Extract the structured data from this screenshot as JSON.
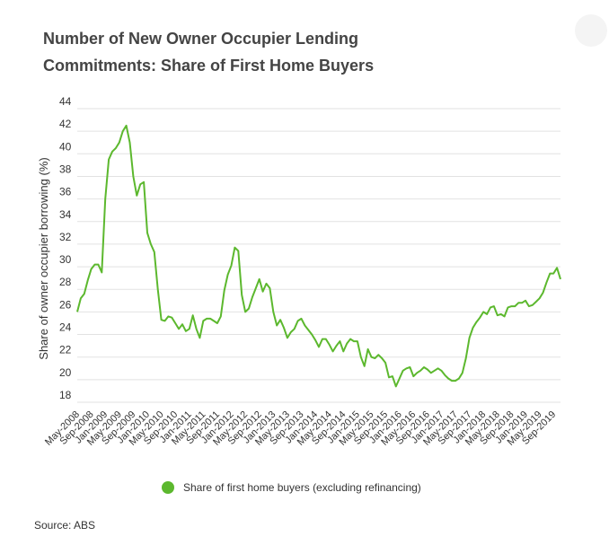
{
  "header": {
    "title_line1": "Number of New Owner Occupier Lending",
    "title_line2": "Commitments: Share of First Home Buyers"
  },
  "footer": {
    "source": "Source: ABS"
  },
  "colors": {
    "series": "#5cb82e",
    "grid": "#e2e2e2",
    "text": "#333333"
  },
  "chart_data": {
    "type": "line",
    "title": "Number of New Owner Occupier Lending Commitments: Share of First Home Buyers",
    "ylabel": "Share of owner occupier borrowing (%)",
    "xlabel": "",
    "ylim": [
      18,
      44
    ],
    "yticks": [
      18,
      20,
      22,
      24,
      26,
      28,
      30,
      32,
      34,
      36,
      38,
      40,
      42,
      44
    ],
    "grid": true,
    "legend_position": "bottom",
    "x_tick_labels": [
      "May-2008",
      "Sep-2008",
      "Jan-2009",
      "May-2009",
      "Sep-2009",
      "Jan-2010",
      "May-2010",
      "Sep-2010",
      "Jan-2011",
      "May-2011",
      "Sep-2011",
      "Jan-2012",
      "May-2012",
      "Sep-2012",
      "Jan-2013",
      "May-2013",
      "Sep-2013",
      "Jan-2014",
      "May-2014",
      "Sep-2014",
      "Jan-2015",
      "May-2015",
      "Sep-2015",
      "Jan-2016",
      "May-2016",
      "Sep-2016",
      "Jan-2017",
      "May-2017",
      "Sep-2017",
      "Jan-2018",
      "May-2018",
      "Sep-2018",
      "Jan-2019",
      "May-2019",
      "Sep-2019"
    ],
    "series": [
      {
        "name": "Share of first home buyers (excluding refinancing)",
        "color": "#5cb82e",
        "x_start": "May-2008",
        "x_end": "Nov-2019",
        "values": [
          26.0,
          27.2,
          27.6,
          28.8,
          29.8,
          30.2,
          30.2,
          29.5,
          36.0,
          39.5,
          40.2,
          40.5,
          41.0,
          42.0,
          42.5,
          41.0,
          38.0,
          36.3,
          37.3,
          37.5,
          33.0,
          32.0,
          31.3,
          28.0,
          25.3,
          25.2,
          25.6,
          25.5,
          25.0,
          24.5,
          24.9,
          24.3,
          24.5,
          25.7,
          24.5,
          23.7,
          25.2,
          25.4,
          25.4,
          25.2,
          25.0,
          25.6,
          27.9,
          29.3,
          30.1,
          31.7,
          31.4,
          27.5,
          26.0,
          26.3,
          27.3,
          28.1,
          28.9,
          27.8,
          28.5,
          28.1,
          26.0,
          24.8,
          25.3,
          24.6,
          23.7,
          24.2,
          24.5,
          25.2,
          25.4,
          24.8,
          24.4,
          24.0,
          23.5,
          22.9,
          23.6,
          23.6,
          23.1,
          22.5,
          23.0,
          23.4,
          22.5,
          23.2,
          23.6,
          23.4,
          23.4,
          22.0,
          21.2,
          22.7,
          22.0,
          21.9,
          22.2,
          21.9,
          21.5,
          20.2,
          20.3,
          19.4,
          20.1,
          20.8,
          21.0,
          21.1,
          20.3,
          20.6,
          20.8,
          21.1,
          20.9,
          20.6,
          20.8,
          21.0,
          20.8,
          20.4,
          20.1,
          19.9,
          19.9,
          20.1,
          20.6,
          21.9,
          23.7,
          24.6,
          25.1,
          25.5,
          26.0,
          25.8,
          26.4,
          26.5,
          25.7,
          25.8,
          25.6,
          26.4,
          26.5,
          26.5,
          26.8,
          26.8,
          27.0,
          26.5,
          26.6,
          26.9,
          27.2,
          27.7,
          28.6,
          29.4,
          29.4,
          29.9,
          28.9
        ]
      }
    ]
  }
}
